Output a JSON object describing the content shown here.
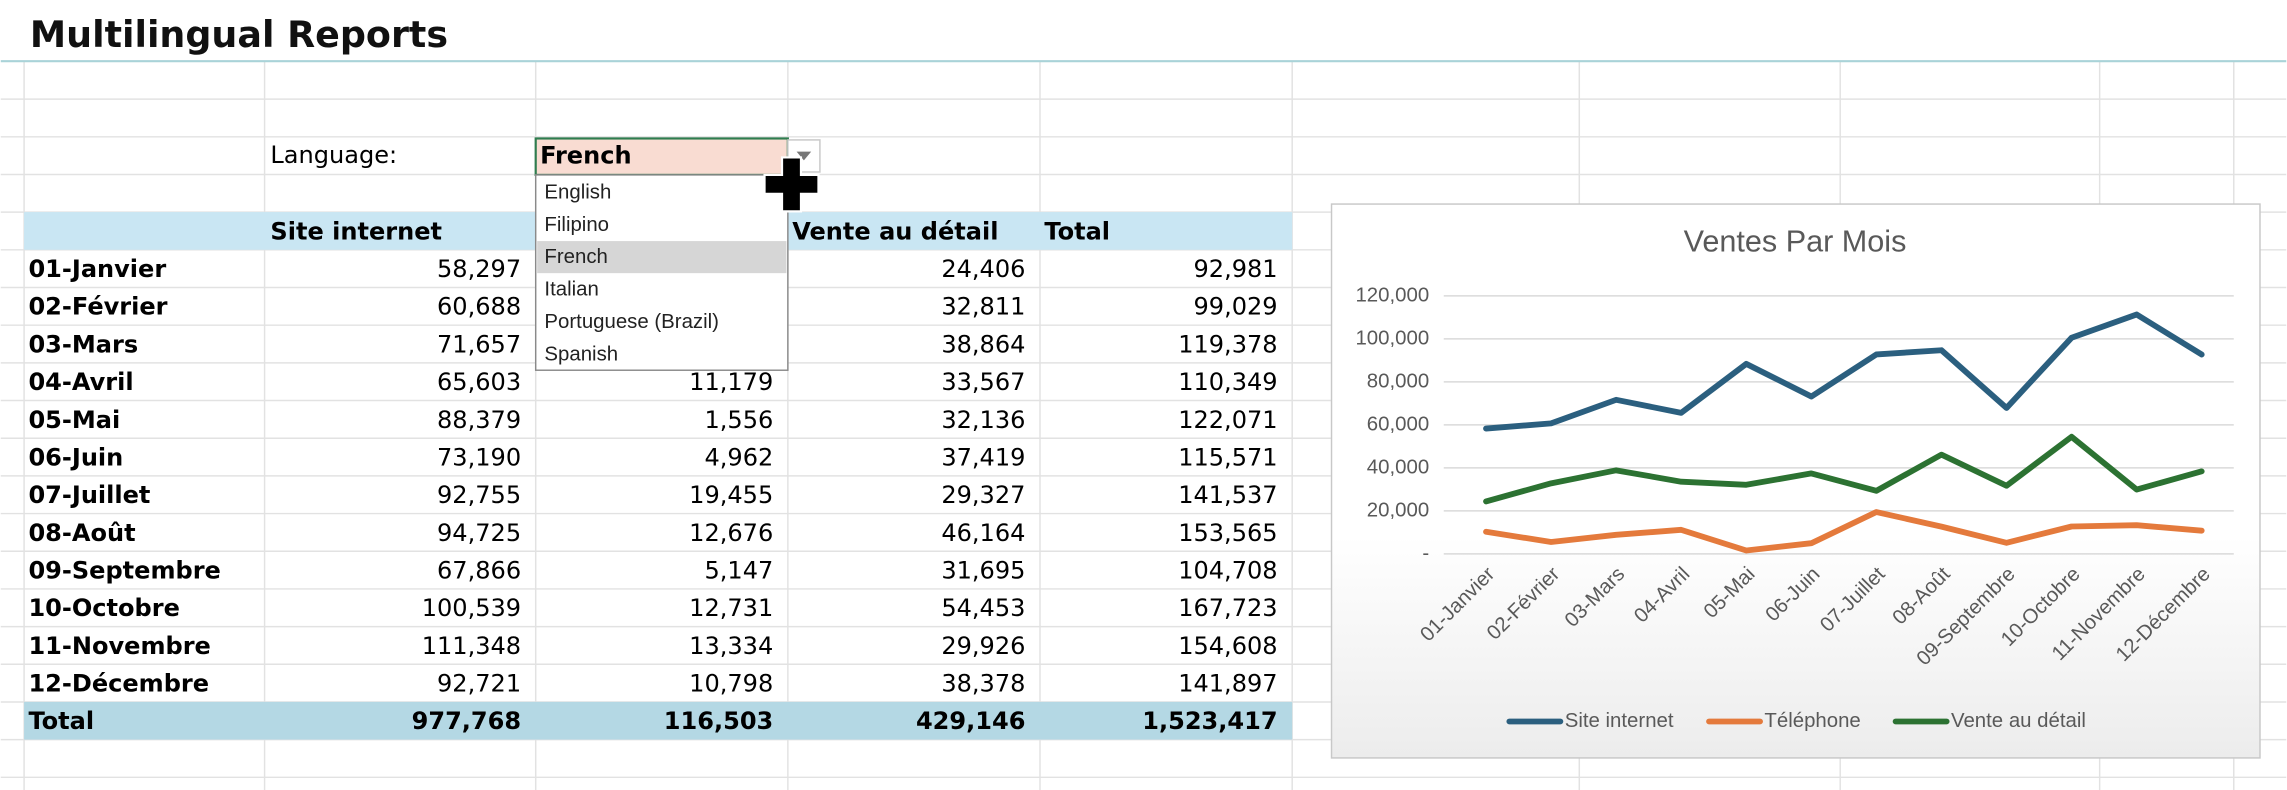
{
  "header": {
    "title": "Multilingual Reports"
  },
  "language": {
    "label": "Language:",
    "selected": "French",
    "options": [
      "English",
      "Filipino",
      "French",
      "Italian",
      "Portuguese (Brazil)",
      "Spanish"
    ]
  },
  "table": {
    "columns": [
      "Site internet",
      null,
      "Vente au détail",
      "Total"
    ],
    "rows": [
      [
        "01-Janvier",
        "58,297",
        null,
        "24,406",
        "92,981"
      ],
      [
        "02-Février",
        "60,688",
        null,
        "32,811",
        "99,029"
      ],
      [
        "03-Mars",
        "71,657",
        null,
        "38,864",
        "119,378"
      ],
      [
        "04-Avril",
        "65,603",
        "11,179",
        "33,567",
        "110,349"
      ],
      [
        "05-Mai",
        "88,379",
        "1,556",
        "32,136",
        "122,071"
      ],
      [
        "06-Juin",
        "73,190",
        "4,962",
        "37,419",
        "115,571"
      ],
      [
        "07-Juillet",
        "92,755",
        "19,455",
        "29,327",
        "141,537"
      ],
      [
        "08-Août",
        "94,725",
        "12,676",
        "46,164",
        "153,565"
      ],
      [
        "09-Septembre",
        "67,866",
        "5,147",
        "31,695",
        "104,708"
      ],
      [
        "10-Octobre",
        "100,539",
        "12,731",
        "54,453",
        "167,723"
      ],
      [
        "11-Novembre",
        "111,348",
        "13,334",
        "29,926",
        "154,608"
      ],
      [
        "12-Décembre",
        "92,721",
        "10,798",
        "38,378",
        "141,897"
      ]
    ],
    "total": [
      "Total",
      "977,768",
      "116,503",
      "429,146",
      "1,523,417"
    ]
  },
  "chart_data": {
    "type": "line",
    "title": "Ventes Par Mois",
    "categories": [
      "01-Janvier",
      "02-Février",
      "03-Mars",
      "04-Avril",
      "05-Mai",
      "06-Juin",
      "07-Juillet",
      "08-Août",
      "09-Septembre",
      "10-Octobre",
      "11-Novembre",
      "12-Décembre"
    ],
    "series": [
      {
        "name": "Site internet",
        "color": "#2b5f7f",
        "values": [
          58297,
          60688,
          71657,
          65603,
          88379,
          73190,
          92755,
          94725,
          67866,
          100539,
          111348,
          92721
        ]
      },
      {
        "name": "Téléphone",
        "color": "#e47a3c",
        "values": [
          10278,
          5530,
          8857,
          11179,
          1556,
          4962,
          19455,
          12676,
          5147,
          12731,
          13334,
          10798
        ]
      },
      {
        "name": "Vente au détail",
        "color": "#2c7232",
        "values": [
          24406,
          32811,
          38864,
          33567,
          32136,
          37419,
          29327,
          46164,
          31695,
          54453,
          29926,
          38378
        ]
      }
    ],
    "ylim": [
      0,
      120000
    ],
    "yticks": [
      {
        "value": 0,
        "label": "-"
      },
      {
        "value": 20000,
        "label": "20,000"
      },
      {
        "value": 40000,
        "label": "40,000"
      },
      {
        "value": 60000,
        "label": "60,000"
      },
      {
        "value": 80000,
        "label": "80,000"
      },
      {
        "value": 100000,
        "label": "100,000"
      },
      {
        "value": 120000,
        "label": "120,000"
      }
    ],
    "grid": true,
    "legend": "bottom"
  }
}
